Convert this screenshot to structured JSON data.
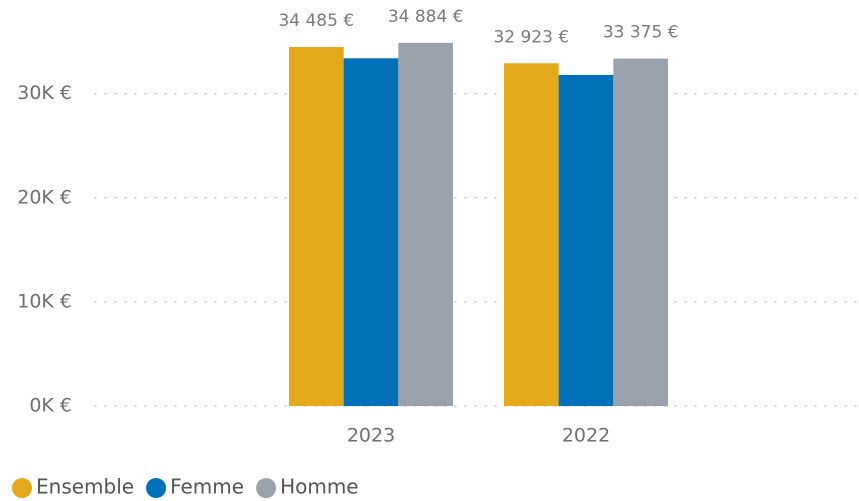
{
  "chart_data": {
    "type": "bar",
    "categories": [
      "2023",
      "2022"
    ],
    "series": [
      {
        "name": "Ensemble",
        "color": "#e3a91a",
        "values": [
          34485,
          32923
        ],
        "value_labels": [
          "34 485 €",
          "32 923 €"
        ]
      },
      {
        "name": "Femme",
        "color": "#0070b8",
        "values": [
          33400,
          31800
        ]
      },
      {
        "name": "Homme",
        "color": "#9aa3ad",
        "values": [
          34884,
          33375
        ],
        "value_labels": [
          "34 884 €",
          "33 375 €"
        ]
      }
    ],
    "ylim": [
      0,
      39000
    ],
    "yticks": [
      {
        "value": 0,
        "label": "0K €"
      },
      {
        "value": 10000,
        "label": "10K €"
      },
      {
        "value": 20000,
        "label": "20K €"
      },
      {
        "value": 30000,
        "label": "30K €"
      }
    ],
    "grid": true,
    "legend": "bottom-left"
  }
}
